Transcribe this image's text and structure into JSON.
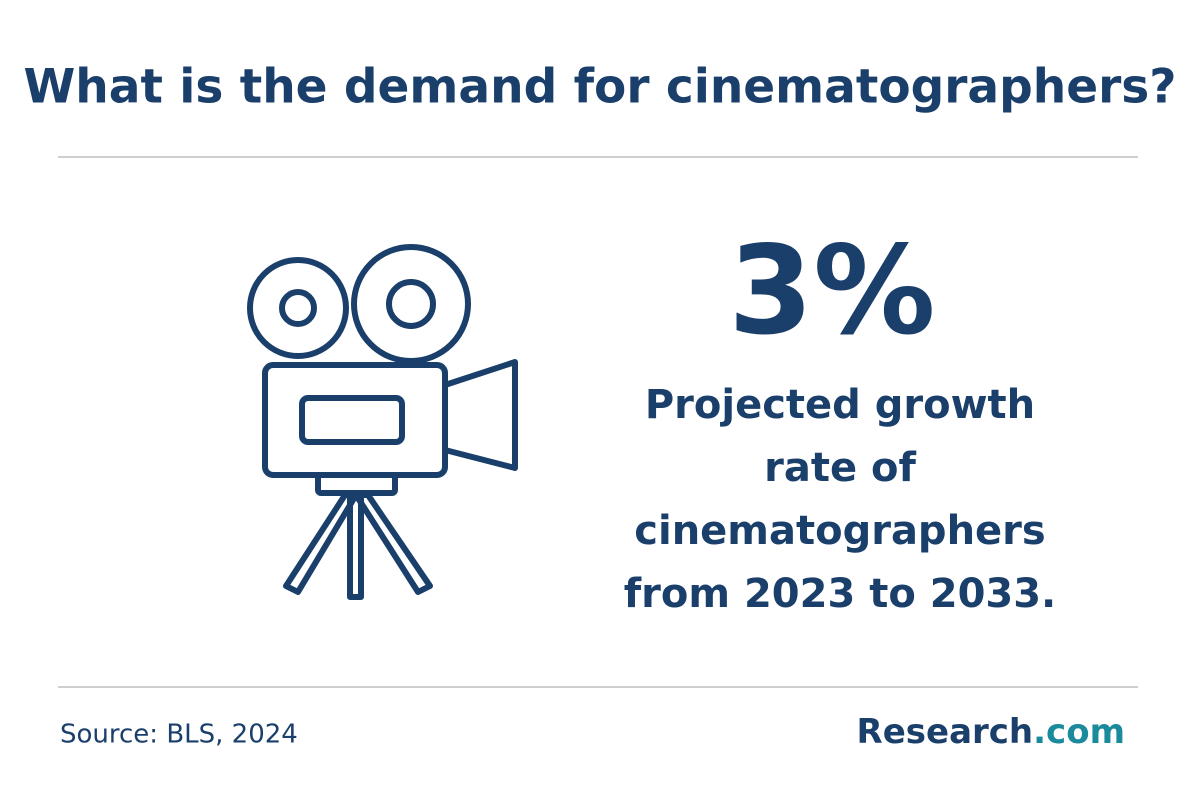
{
  "header": {
    "title": "What is the demand for cinematographers?"
  },
  "stat": {
    "value": "3%",
    "lines": [
      "Projected growth",
      "rate of",
      "cinematographers",
      "from 2023 to 2033."
    ]
  },
  "footer": {
    "source": "Source: BLS, 2024",
    "logo": [
      "Research",
      ".com"
    ]
  }
}
